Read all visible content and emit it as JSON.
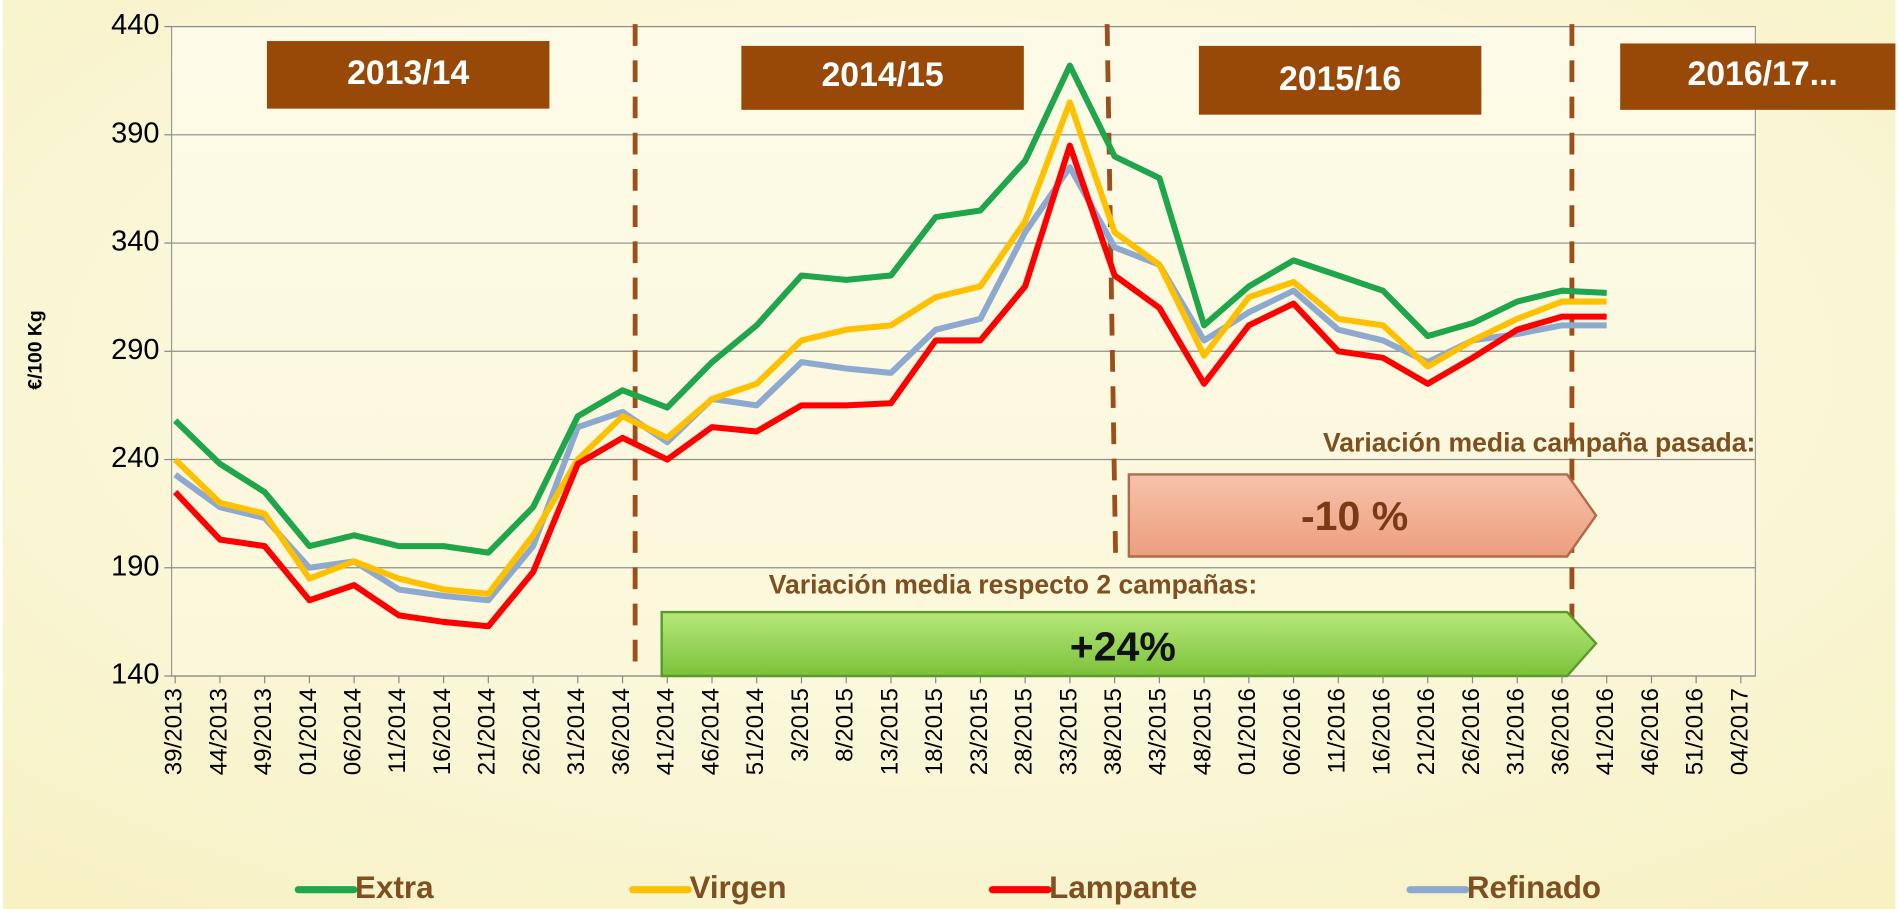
{
  "chart_data": {
    "type": "line",
    "ylabel": "€/100 Kg",
    "categories": [
      "39/2013",
      "44/2013",
      "49/2013",
      "01/2014",
      "06/2014",
      "11/2014",
      "16/2014",
      "21/2014",
      "26/2014",
      "31/2014",
      "36/2014",
      "41/2014",
      "46/2014",
      "51/2014",
      "3/2015",
      "8/2015",
      "13/2015",
      "18/2015",
      "23/2015",
      "28/2015",
      "33/2015",
      "38/2015",
      "43/2015",
      "48/2015",
      "01/2016",
      "06/2016",
      "11/2016",
      "16/2016",
      "21/2016",
      "26/2016",
      "31/2016",
      "36/2016",
      "41/2016",
      "46/2016",
      "51/2016",
      "04/2017"
    ],
    "series": [
      {
        "name": "Extra",
        "color": "#1fa54a",
        "values": [
          258,
          238,
          225,
          200,
          205,
          200,
          200,
          197,
          218,
          260,
          272,
          264,
          285,
          302,
          325,
          323,
          325,
          352,
          355,
          378,
          422,
          380,
          370,
          302,
          320,
          332,
          325,
          318,
          297,
          303,
          313,
          318,
          317,
          null,
          null,
          null
        ]
      },
      {
        "name": "Virgen",
        "color": "#ffc000",
        "values": [
          240,
          220,
          215,
          185,
          193,
          185,
          180,
          178,
          205,
          240,
          260,
          250,
          268,
          275,
          295,
          300,
          302,
          315,
          320,
          350,
          405,
          345,
          330,
          288,
          315,
          322,
          305,
          302,
          283,
          295,
          305,
          313,
          313,
          null,
          null,
          null
        ]
      },
      {
        "name": "Lampante",
        "color": "#ff0000",
        "values": [
          225,
          203,
          200,
          175,
          182,
          168,
          165,
          163,
          188,
          238,
          250,
          240,
          255,
          253,
          265,
          265,
          266,
          295,
          295,
          320,
          385,
          325,
          310,
          275,
          302,
          312,
          290,
          287,
          275,
          287,
          300,
          306,
          306,
          null,
          null,
          null
        ]
      },
      {
        "name": "Refinado",
        "color": "#8ea9d0",
        "values": [
          233,
          218,
          213,
          190,
          193,
          180,
          177,
          175,
          200,
          255,
          262,
          248,
          268,
          265,
          285,
          282,
          280,
          300,
          305,
          345,
          375,
          338,
          330,
          295,
          308,
          318,
          300,
          295,
          285,
          295,
          298,
          302,
          302,
          null,
          null,
          null
        ]
      }
    ],
    "ylim": [
      140,
      440
    ],
    "yticks": [
      140,
      190,
      240,
      290,
      340,
      390,
      440
    ],
    "grid": true,
    "legend": "bottom",
    "seasons": [
      "2013/14",
      "2014/15",
      "2015/16",
      "2016/17..."
    ],
    "annotations": [
      "Variación media campaña pasada:",
      "-10 %",
      "Variación media respecto 2 campañas:",
      "+24%"
    ]
  }
}
